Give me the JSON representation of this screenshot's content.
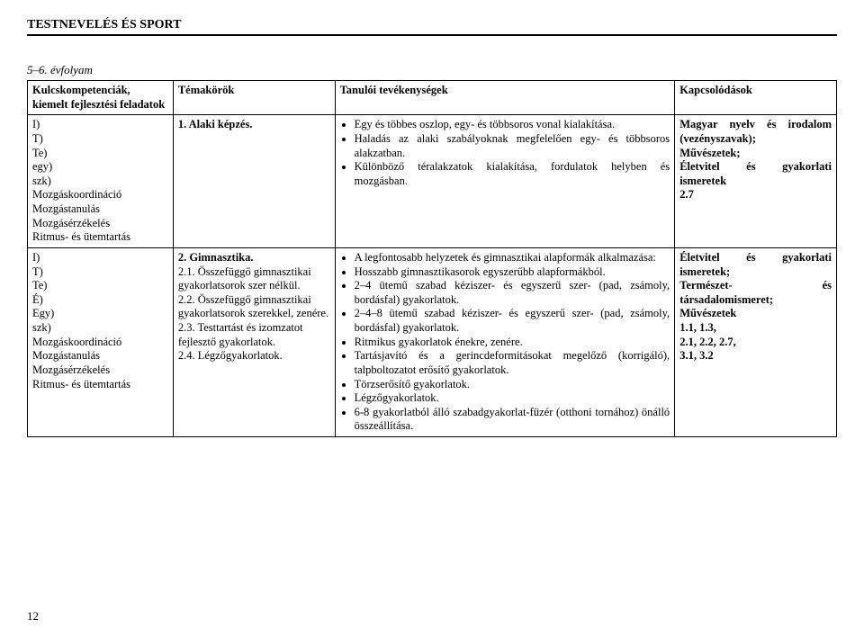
{
  "header": {
    "subject": "TESTNEVELÉS ÉS SPORT"
  },
  "grade": "5–6. évfolyam",
  "columns": {
    "c1": "Kulcskompetenciák, kiemelt fejlesztési feladatok",
    "c2": "Témakörök",
    "c3": "Tanulói tevékenységek",
    "c4": "Kapcsolódások"
  },
  "row1": {
    "comp": {
      "a": "I)",
      "b": "T)",
      "c": "Te)",
      "d": "egy)",
      "e": "szk)",
      "f": "Mozgáskoordináció",
      "g": "Mozgástanulás",
      "h": "Mozgásérzékelés",
      "i": "Ritmus- és ütemtartás"
    },
    "topic": "1. Alaki képzés.",
    "act": {
      "a": "Egy és többes oszlop, egy- és többsoros vonal kialakítása.",
      "b": "Haladás az alaki szabályoknak megfelelően egy- és többsoros alakzatban.",
      "c": "Különböző téralakzatok kialakítása, fordulatok helyben és mozgásban."
    },
    "conn": {
      "a": "Magyar nyelv és irodalom (vezényszavak);",
      "b": "Művészetek;",
      "c": "Életvitel és gyakorlati ismeretek",
      "d": "2.7"
    }
  },
  "row2": {
    "comp": {
      "a": "I)",
      "b": "T)",
      "c": "Te)",
      "d": "É)",
      "e": "Egy)",
      "f": "szk)",
      "g": "Mozgáskoordináció",
      "h": "Mozgástanulás",
      "i": "Mozgásérzékelés",
      "j": "Ritmus- és ütemtartás"
    },
    "topic": {
      "a": "2. Gimnasztika.",
      "b": "2.1. Összefüggő gimnasztikai gyakorlatsorok szer nélkül.",
      "c": "2.2. Összefüggő gimnasztikai gyakorlatsorok szerekkel, zenére.",
      "d": "2.3. Testtartást és izomzatot fejlesztő gyakorlatok.",
      "e": "2.4. Légzőgyakorlatok."
    },
    "act": {
      "a": "A legfontosabb helyzetek és gimnasztikai alapformák alkalmazása:",
      "b": "Hosszabb gimnasztikasorok egyszerűbb alapformákból.",
      "c": "2–4 ütemű szabad kéziszer- és egyszerű szer- (pad, zsámoly, bordásfal) gyakorlatok.",
      "d": "2–4–8 ütemű szabad kéziszer- és egyszerű szer- (pad, zsámoly, bordásfal) gyakorlatok.",
      "e": "Ritmikus gyakorlatok énekre, zenére.",
      "f": "Tartásjavító és a gerincdeformitásokat megelőző (korrigáló), talpboltozatot erősítő gyakorlatok.",
      "g": "Törzserősítő gyakorlatok.",
      "h": "Légzőgyakorlatok.",
      "i": "6-8 gyakorlatból álló szabadgyakorlat-füzér (otthoni tornához) önálló összeállítása."
    },
    "conn": {
      "a": "Életvitel és gyakorlati ismeretek;",
      "b": "Természet- és társadalomismeret;",
      "c": "Művészetek",
      "d": "1.1, 1.3,",
      "e": "2.1, 2.2, 2.7,",
      "f": "3.1, 3.2"
    }
  },
  "pageNum": "12"
}
